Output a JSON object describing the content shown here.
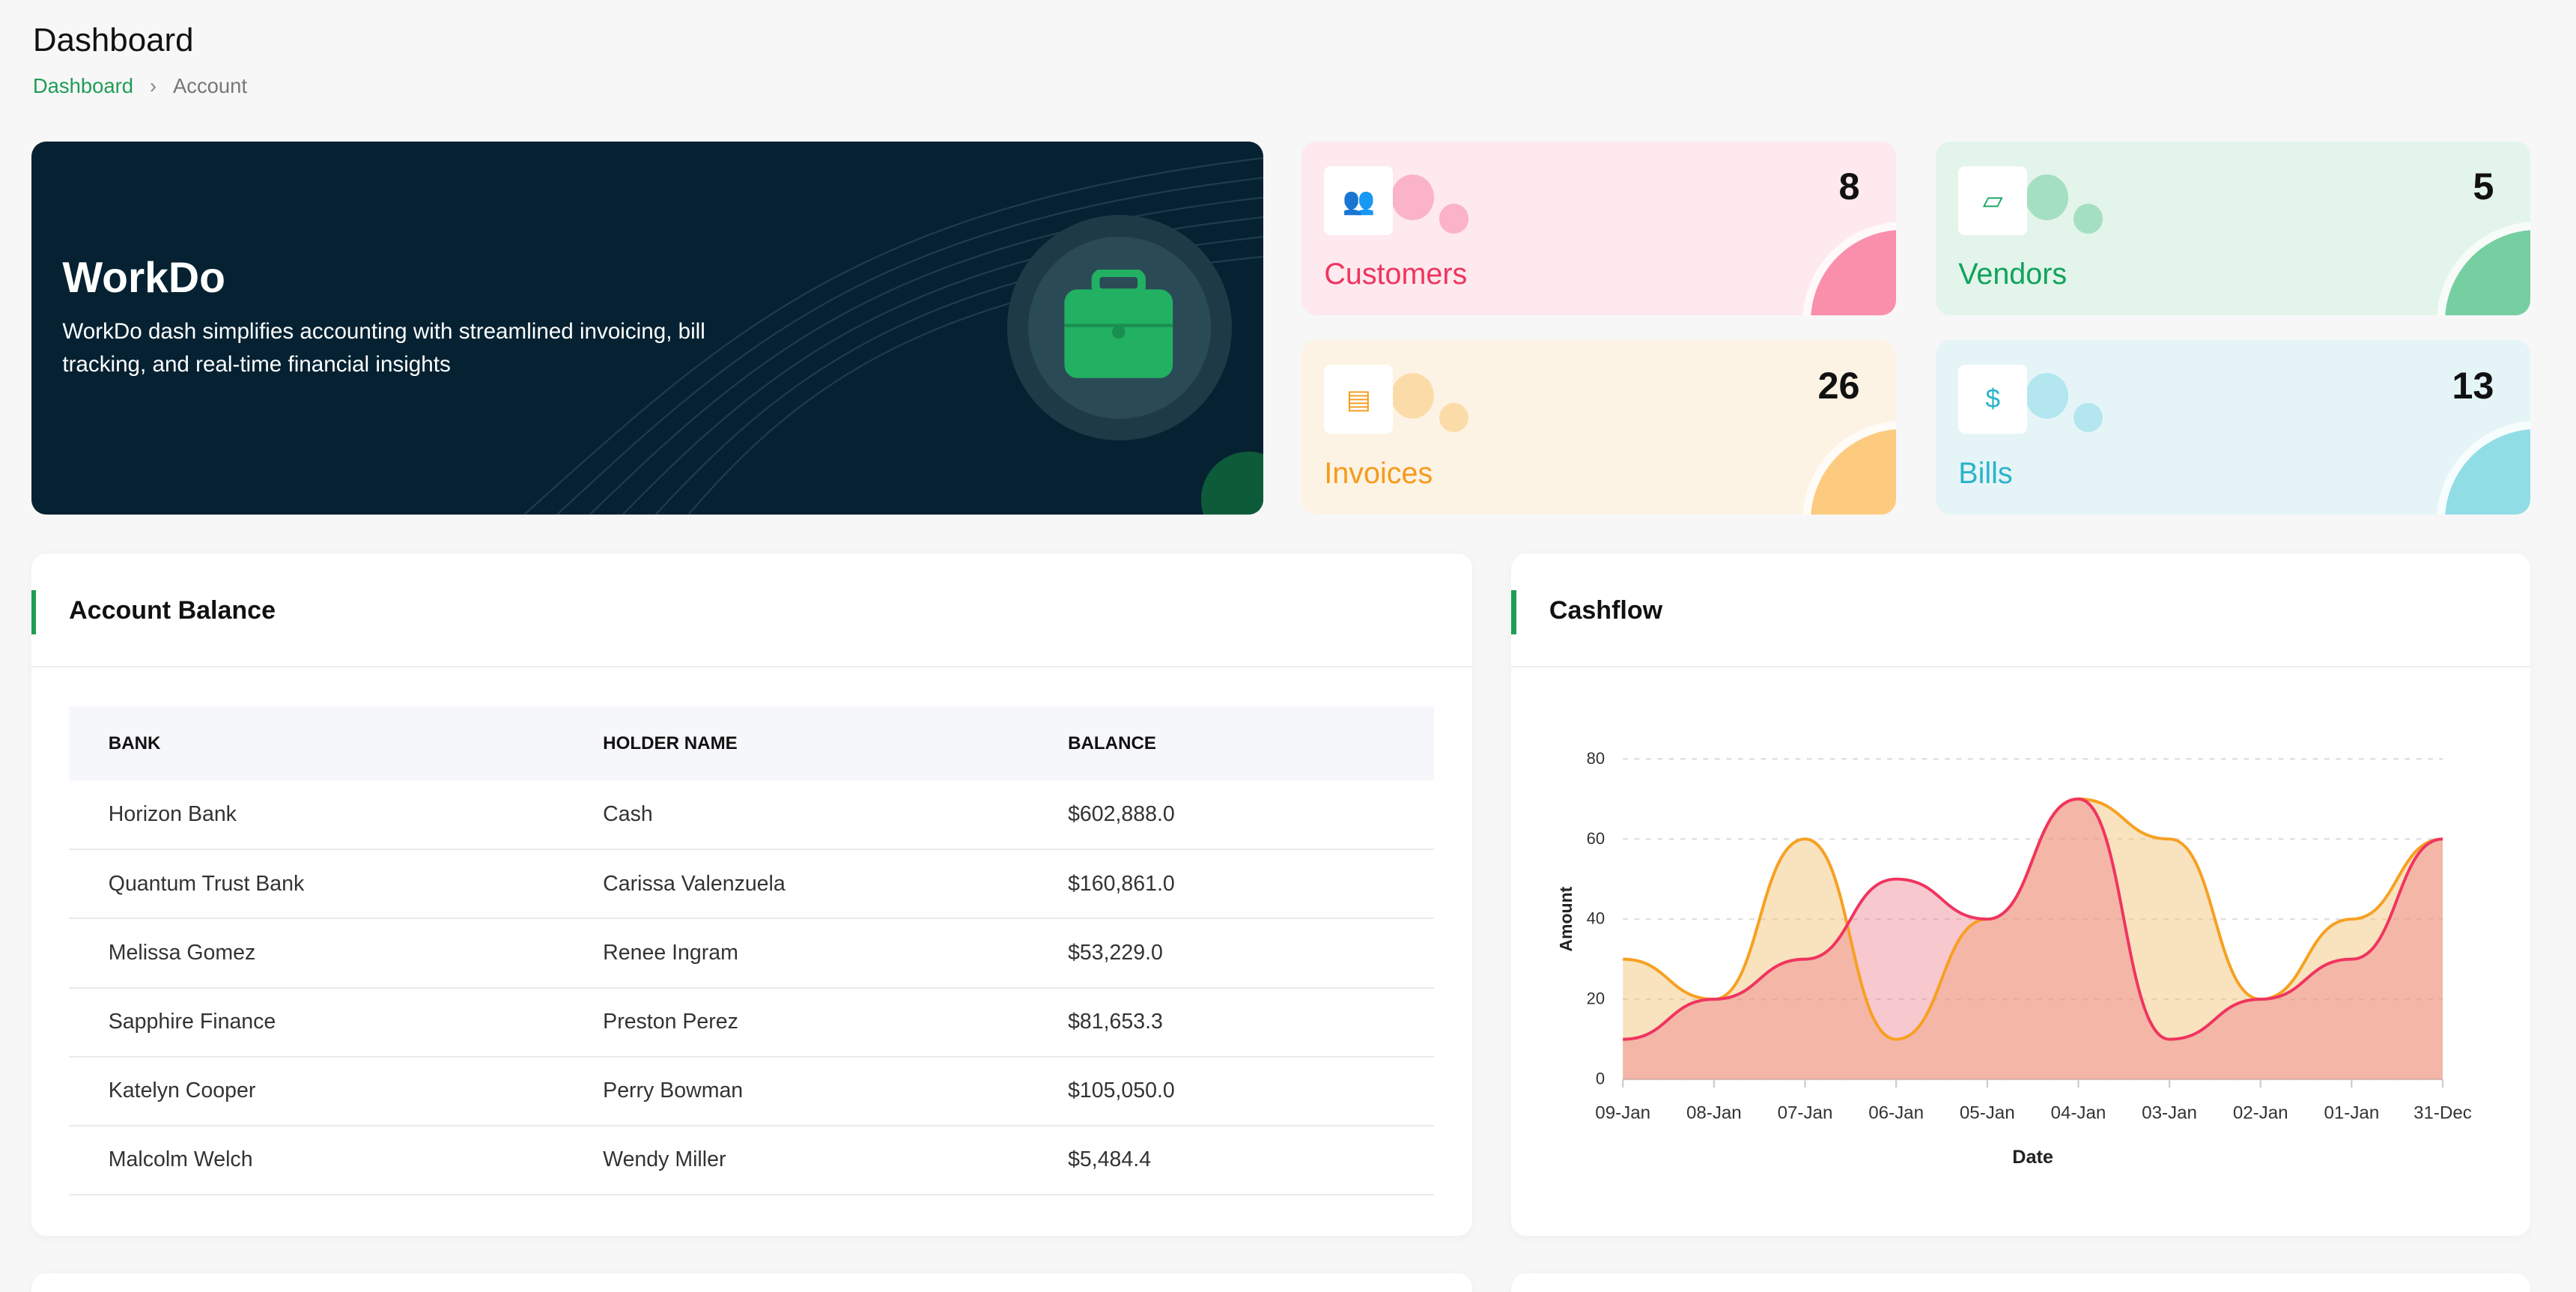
{
  "header": {
    "title": "Dashboard",
    "breadcrumb": [
      "Dashboard",
      "Account"
    ],
    "separator": "›"
  },
  "banner": {
    "title": "WorkDo",
    "description": "WorkDo dash simplifies accounting with streamlined invoicing, bill tracking, and real-time financial insights",
    "icon": "briefcase-icon"
  },
  "cards": [
    {
      "label": "Customers",
      "value": "8",
      "icon": "users-icon",
      "color": "#f0345f",
      "bg": "#fde9ee",
      "bubble": "#fbb3c8",
      "corner": "#f98fab"
    },
    {
      "label": "Vendors",
      "value": "5",
      "icon": "sticky-note-icon",
      "color": "#10a35a",
      "bg": "#e3f4eb",
      "bubble": "#a5dfc1",
      "corner": "#76cfa0"
    },
    {
      "label": "Invoices",
      "value": "26",
      "icon": "file-invoice-icon",
      "color": "#f59b1a",
      "bg": "#fdf3e5",
      "bubble": "#fbdca8",
      "corner": "#fccb80"
    },
    {
      "label": "Bills",
      "value": "13",
      "icon": "clipboard-dollar-icon",
      "color": "#2bb3cb",
      "bg": "#e5f5f7",
      "bubble": "#b3e6ee",
      "corner": "#90dde6"
    }
  ],
  "account_balance": {
    "title": "Account Balance",
    "columns": [
      "BANK",
      "HOLDER NAME",
      "BALANCE"
    ],
    "rows": [
      [
        "Horizon Bank",
        "Cash",
        "$602,888.0"
      ],
      [
        "Quantum Trust Bank",
        "Carissa Valenzuela",
        "$160,861.0"
      ],
      [
        "Melissa Gomez",
        "Renee Ingram",
        "$53,229.0"
      ],
      [
        "Sapphire Finance",
        "Preston Perez",
        "$81,653.3"
      ],
      [
        "Katelyn Cooper",
        "Perry Bowman",
        "$105,050.0"
      ],
      [
        "Malcolm Welch",
        "Wendy Miller",
        "$5,484.4"
      ]
    ]
  },
  "cashflow": {
    "title": "Cashflow"
  },
  "chart_data": {
    "type": "area",
    "xlabel": "Date",
    "ylabel": "Amount",
    "ylim": [
      0,
      80
    ],
    "yticks": [
      0,
      20,
      40,
      60,
      80
    ],
    "grid": true,
    "categories": [
      "09-Jan",
      "08-Jan",
      "07-Jan",
      "06-Jan",
      "05-Jan",
      "04-Jan",
      "03-Jan",
      "02-Jan",
      "01-Jan",
      "31-Dec"
    ],
    "series": [
      {
        "values": [
          30,
          20,
          60,
          10,
          40,
          70,
          60,
          20,
          40,
          60
        ],
        "color": "#f7a021"
      },
      {
        "values": [
          10,
          20,
          30,
          50,
          40,
          70,
          10,
          20,
          30,
          60
        ],
        "color": "#f0345f"
      }
    ]
  }
}
